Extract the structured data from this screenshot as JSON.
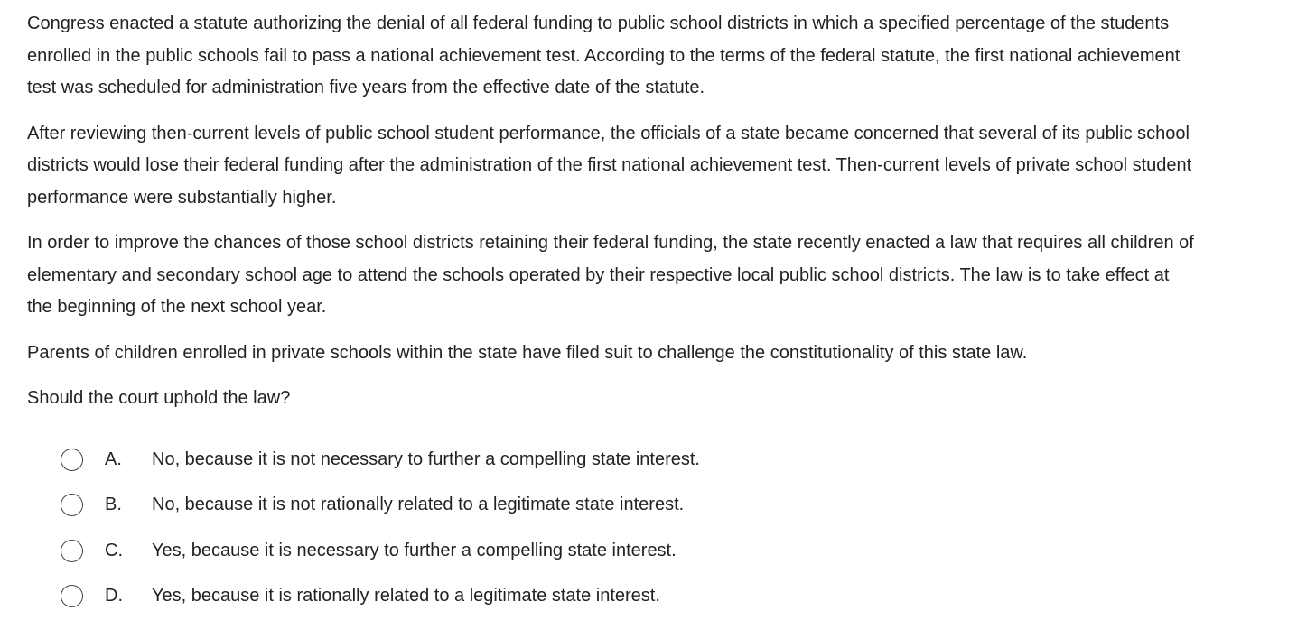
{
  "stem": {
    "paragraph_1": [
      "Congress enacted a statute authorizing the denial of all federal funding to public school districts in which a specified percentage of the students",
      "enrolled in the public schools fail to pass a national achievement test.  According to the terms of the federal statute, the first national achievement",
      "test was scheduled for administration five years from the effective date of the statute."
    ],
    "paragraph_2": [
      "After reviewing then-current levels of public school student performance, the officials of a state became concerned that several of its public school",
      "districts would lose their federal funding after the administration of the first national achievement test.  Then-current levels of private school student",
      "performance were substantially higher."
    ],
    "paragraph_3": [
      "In order to improve the chances of those school districts retaining their federal funding, the state recently enacted a law that requires all children of",
      "elementary and secondary school age to attend the schools operated by their respective local public school districts.  The law is to take effect at",
      "the beginning of the next school year."
    ],
    "paragraph_4": [
      "Parents of children enrolled in private schools within the state have filed suit to challenge the constitutionality of this state law."
    ],
    "question": "Should the court uphold the law?"
  },
  "choices": [
    {
      "letter": "A.",
      "text": "No, because it is not necessary to further a compelling state interest."
    },
    {
      "letter": "B.",
      "text": "No, because it is not rationally related to a legitimate state interest."
    },
    {
      "letter": "C.",
      "text": "Yes, because it is necessary to further a compelling state interest."
    },
    {
      "letter": "D.",
      "text": "Yes, because it is rationally related to a legitimate state interest."
    }
  ]
}
